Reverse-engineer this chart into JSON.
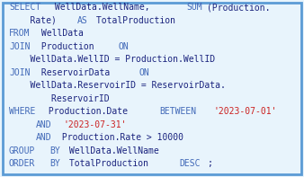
{
  "bg_color": "#e8f4fc",
  "border_color": "#5b9bd5",
  "font_size": 7.0,
  "kw_color": "#4169b8",
  "body_color": "#1a237e",
  "str_color": "#cc2222",
  "lines": [
    [
      {
        "text": "SELECT",
        "color": "#4169b8"
      },
      {
        "text": " WellData.WellName, ",
        "color": "#1a237e"
      },
      {
        "text": "SUM",
        "color": "#4169b8"
      },
      {
        "text": "(Production.",
        "color": "#1a237e"
      }
    ],
    [
      {
        "text": "    Rate) ",
        "color": "#1a237e"
      },
      {
        "text": "AS",
        "color": "#4169b8"
      },
      {
        "text": " TotalProduction",
        "color": "#1a237e"
      }
    ],
    [
      {
        "text": "FROM",
        "color": "#4169b8"
      },
      {
        "text": " WellData",
        "color": "#1a237e"
      }
    ],
    [
      {
        "text": "JOIN",
        "color": "#4169b8"
      },
      {
        "text": " Production ",
        "color": "#1a237e"
      },
      {
        "text": "ON",
        "color": "#4169b8"
      }
    ],
    [
      {
        "text": "    WellData.WellID = Production.WellID",
        "color": "#1a237e"
      }
    ],
    [
      {
        "text": "JOIN",
        "color": "#4169b8"
      },
      {
        "text": " ReservoirData ",
        "color": "#1a237e"
      },
      {
        "text": "ON",
        "color": "#4169b8"
      }
    ],
    [
      {
        "text": "    WellData.ReservoirID = ReservoirData.",
        "color": "#1a237e"
      }
    ],
    [
      {
        "text": "        ReservoirID",
        "color": "#1a237e"
      }
    ],
    [
      {
        "text": "WHERE",
        "color": "#4169b8"
      },
      {
        "text": " Production.Date ",
        "color": "#1a237e"
      },
      {
        "text": "BETWEEN",
        "color": "#4169b8"
      },
      {
        "text": " ",
        "color": "#1a237e"
      },
      {
        "text": "'2023-07-01'",
        "color": "#cc2222"
      }
    ],
    [
      {
        "text": "    ",
        "color": "#1a237e"
      },
      {
        "text": "AND",
        "color": "#4169b8"
      },
      {
        "text": " ",
        "color": "#1a237e"
      },
      {
        "text": "'2023-07-31'",
        "color": "#cc2222"
      }
    ],
    [
      {
        "text": "    ",
        "color": "#1a237e"
      },
      {
        "text": "AND",
        "color": "#4169b8"
      },
      {
        "text": " Production.Rate > 10000",
        "color": "#1a237e"
      }
    ],
    [
      {
        "text": "GROUP",
        "color": "#4169b8"
      },
      {
        "text": " ",
        "color": "#1a237e"
      },
      {
        "text": "BY",
        "color": "#4169b8"
      },
      {
        "text": " WellData.WellName",
        "color": "#1a237e"
      }
    ],
    [
      {
        "text": "ORDER",
        "color": "#4169b8"
      },
      {
        "text": " ",
        "color": "#1a237e"
      },
      {
        "text": "BY",
        "color": "#4169b8"
      },
      {
        "text": " TotalProduction ",
        "color": "#1a237e"
      },
      {
        "text": "DESC",
        "color": "#4169b8"
      },
      {
        "text": ";",
        "color": "#1a237e"
      }
    ]
  ]
}
